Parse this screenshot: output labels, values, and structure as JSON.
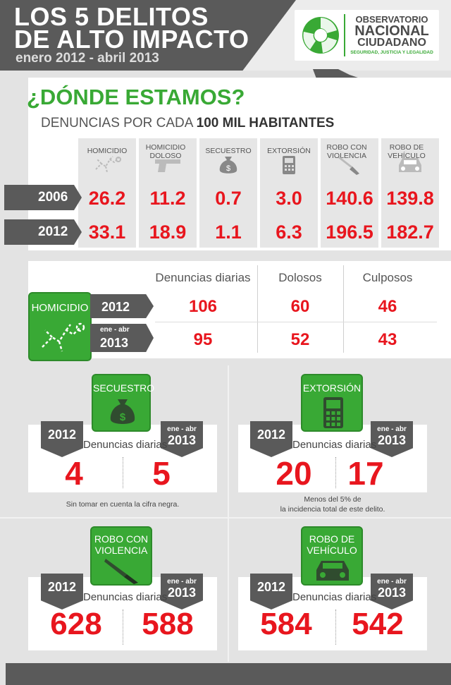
{
  "header": {
    "title_line1": "LOS 5 DELITOS",
    "title_line2": "DE ALTO IMPACTO",
    "period": "enero 2012 - abril 2013",
    "logo": {
      "line1": "OBSERVATORIO",
      "line2": "NACIONAL",
      "line3": "CIUDADANO",
      "tagline": "SEGURIDAD, JUSTICIA Y LEGALIDAD"
    }
  },
  "summary": {
    "title": "¿DÓNDE ESTAMOS?",
    "subtitle_prefix": "DENUNCIAS POR CADA ",
    "subtitle_bold": "100 MIL HABITANTES",
    "columns": [
      {
        "label": "HOMICIDIO",
        "icon": "body-outline-icon"
      },
      {
        "label": "HOMICIDIO DOLOSO",
        "icon": "pistol-icon"
      },
      {
        "label": "SECUESTRO",
        "icon": "money-bag-icon"
      },
      {
        "label": "EXTORSIÓN",
        "icon": "phone-icon"
      },
      {
        "label": "ROBO CON VIOLENCIA",
        "icon": "knife-icon"
      },
      {
        "label": "ROBO DE VEHÍCULO",
        "icon": "car-icon"
      }
    ],
    "rows": [
      {
        "year": "2006",
        "values": [
          "26.2",
          "11.2",
          "0.7",
          "3.0",
          "140.6",
          "139.8"
        ]
      },
      {
        "year": "2012",
        "values": [
          "33.1",
          "18.9",
          "1.1",
          "6.3",
          "196.5",
          "182.7"
        ]
      }
    ]
  },
  "homicidio": {
    "label": "HOMICIDIO",
    "headers": [
      "Denuncias diarias",
      "Dolosos",
      "Culposos"
    ],
    "rows": [
      {
        "year_small": "",
        "year": "2012",
        "values": [
          "106",
          "60",
          "46"
        ]
      },
      {
        "year_small": "ene - abr",
        "year": "2013",
        "values": [
          "95",
          "52",
          "43"
        ]
      }
    ]
  },
  "cards": [
    {
      "label": "SECUESTRO",
      "icon": "money-bag-icon",
      "y2012": "2012",
      "y2013_small": "ene - abr",
      "y2013": "2013",
      "mid": "Denuncias diarias",
      "v2012": "4",
      "v2013": "5",
      "note": "Sin tomar en cuenta la cifra negra."
    },
    {
      "label": "EXTORSIÓN",
      "icon": "phone-icon",
      "y2012": "2012",
      "y2013_small": "ene - abr",
      "y2013": "2013",
      "mid": "Denuncias diarias",
      "v2012": "20",
      "v2013": "17",
      "note_line1": "Menos del 5% de",
      "note_line2": "la incidencia total de este delito."
    },
    {
      "label_line1": "ROBO CON",
      "label_line2": "VIOLENCIA",
      "icon": "knife-icon",
      "y2012": "2012",
      "y2013_small": "ene - abr",
      "y2013": "2013",
      "mid": "Denuncias diarias",
      "v2012": "628",
      "v2013": "588"
    },
    {
      "label_line1": "ROBO DE",
      "label_line2": "VEHÍCULO",
      "icon": "car-icon",
      "y2012": "2012",
      "y2013_small": "ene - abr",
      "y2013": "2013",
      "mid": "Denuncias diarias",
      "v2012": "584",
      "v2013": "542"
    }
  ],
  "colors": {
    "green": "#39a935",
    "red": "#e8161e",
    "dark_gray": "#5a5a5a"
  }
}
